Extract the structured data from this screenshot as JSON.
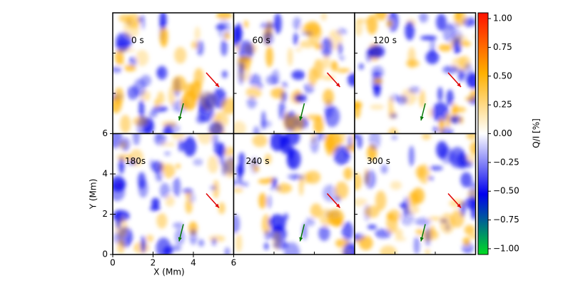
{
  "chart_data": {
    "type": "heatmap",
    "panels": [
      "0 s",
      "60 s",
      "120 s",
      "180s",
      "240 s",
      "300 s"
    ],
    "x_label": "X (Mm)",
    "y_label": "Y (Mm)",
    "xlim": [
      0,
      6
    ],
    "xticks": [
      0,
      2,
      4,
      6
    ],
    "ylim": [
      0,
      6
    ],
    "yticks": [
      0,
      2,
      4,
      6
    ],
    "colorbar": {
      "label": "Q/I [%]",
      "clim": [
        -1.05,
        1.05
      ],
      "colors": [
        "#00dd22",
        "#0000ee",
        "#ffffff",
        "#ffb000",
        "#ff1100"
      ],
      "ticks": [
        {
          "value": 1,
          "label": "1.00"
        },
        {
          "value": 0.75,
          "label": "0.75"
        },
        {
          "value": 0.5,
          "label": "0.50"
        },
        {
          "value": 0.25,
          "label": "0.25"
        },
        {
          "value": 0,
          "label": "0.00"
        },
        {
          "value": -0.25,
          "label": "−0.25"
        },
        {
          "value": -0.5,
          "label": "−0.50"
        },
        {
          "value": -0.75,
          "label": "−0.75"
        },
        {
          "value": -1,
          "label": "−1.00"
        }
      ]
    }
  }
}
